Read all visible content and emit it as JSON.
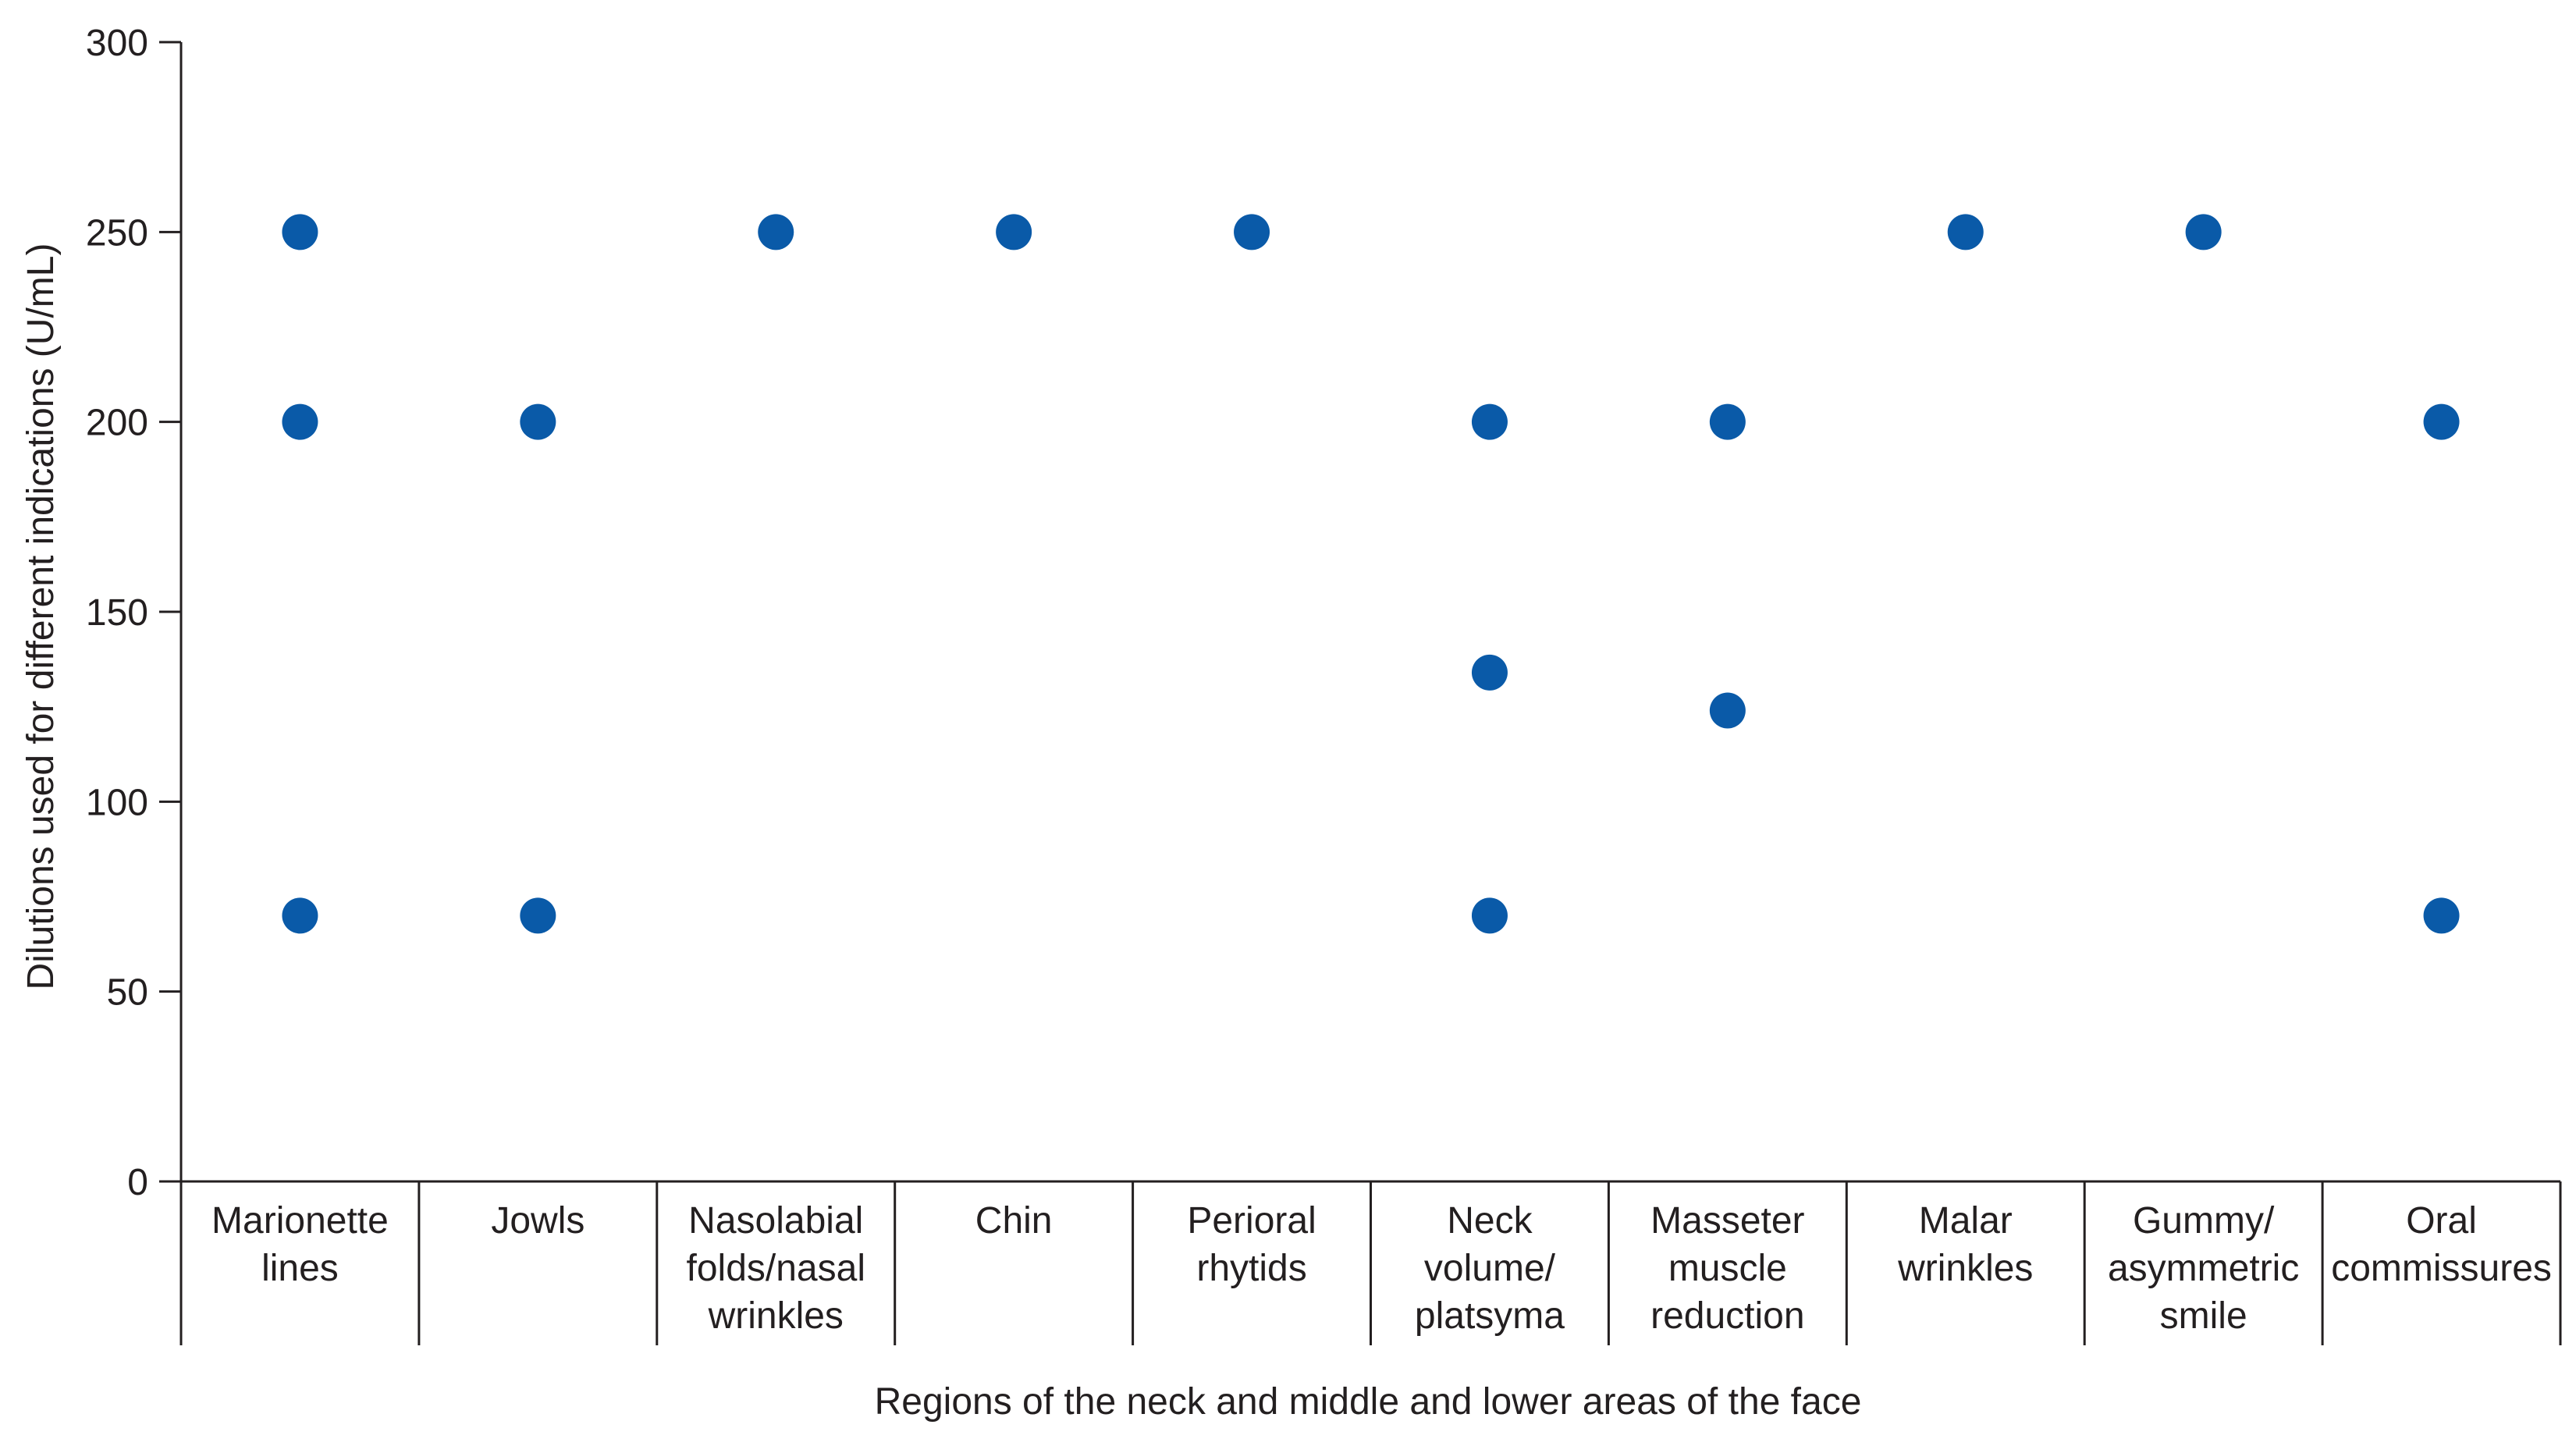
{
  "chart_data": {
    "type": "scatter",
    "title": "",
    "xlabel": "Regions of the neck and middle and lower areas of the face",
    "ylabel": "Dilutions used for different indications (U/mL)",
    "ylim": [
      0,
      300
    ],
    "yticks": [
      "0",
      "50",
      "100",
      "150",
      "200",
      "250",
      "300"
    ],
    "grid": false,
    "legend": "none",
    "marker_color": "#0a5aa8",
    "categories": [
      [
        "Marionette",
        "lines"
      ],
      [
        "Jowls"
      ],
      [
        "Nasolabial",
        "folds/nasal",
        "wrinkles"
      ],
      [
        "Chin"
      ],
      [
        "Perioral",
        "rhytids"
      ],
      [
        "Neck",
        "volume/",
        "platsyma"
      ],
      [
        "Masseter",
        "muscle",
        "reduction"
      ],
      [
        "Malar",
        "wrinkles"
      ],
      [
        "Gummy/",
        "asymmetric",
        "smile"
      ],
      [
        "Oral",
        "commissures"
      ]
    ],
    "points": [
      {
        "category": 0,
        "y": 250
      },
      {
        "category": 0,
        "y": 200
      },
      {
        "category": 0,
        "y": 70
      },
      {
        "category": 1,
        "y": 200
      },
      {
        "category": 1,
        "y": 70
      },
      {
        "category": 2,
        "y": 250
      },
      {
        "category": 3,
        "y": 250
      },
      {
        "category": 4,
        "y": 250
      },
      {
        "category": 5,
        "y": 200
      },
      {
        "category": 5,
        "y": 134
      },
      {
        "category": 5,
        "y": 70
      },
      {
        "category": 6,
        "y": 200
      },
      {
        "category": 6,
        "y": 124
      },
      {
        "category": 7,
        "y": 250
      },
      {
        "category": 8,
        "y": 250
      },
      {
        "category": 9,
        "y": 200
      },
      {
        "category": 9,
        "y": 70
      }
    ]
  }
}
